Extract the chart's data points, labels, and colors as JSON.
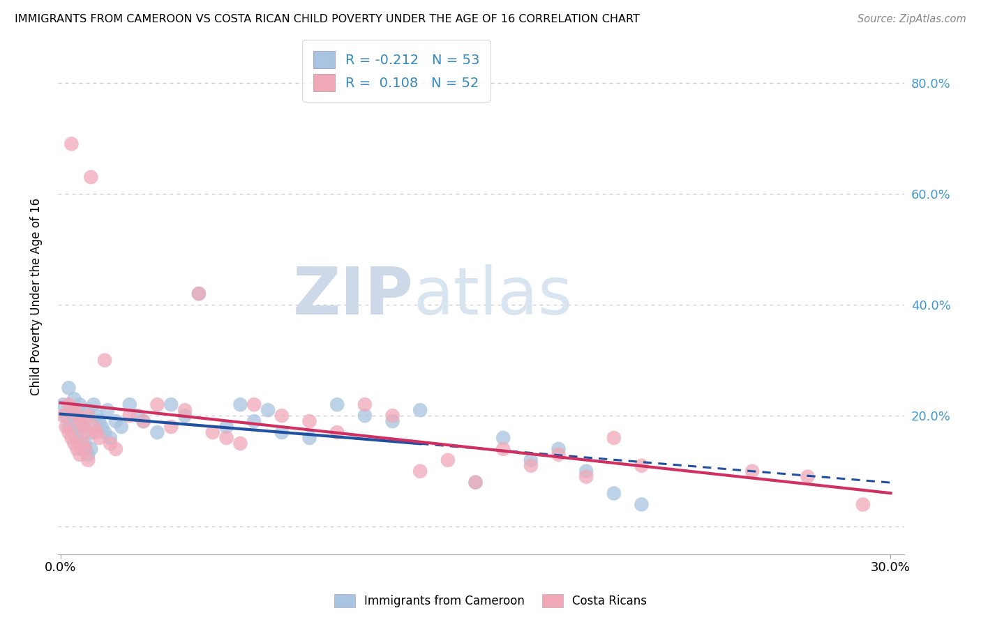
{
  "title": "IMMIGRANTS FROM CAMEROON VS COSTA RICAN CHILD POVERTY UNDER THE AGE OF 16 CORRELATION CHART",
  "source": "Source: ZipAtlas.com",
  "ylabel": "Child Poverty Under the Age of 16",
  "xlim": [
    -0.001,
    0.305
  ],
  "ylim": [
    -0.05,
    0.88
  ],
  "ytick_vals": [
    0.0,
    0.2,
    0.4,
    0.6,
    0.8
  ],
  "ytick_labels": [
    "",
    "20.0%",
    "40.0%",
    "60.0%",
    "80.0%"
  ],
  "xtick_vals": [
    0.0,
    0.05,
    0.1,
    0.15,
    0.2,
    0.25,
    0.3
  ],
  "xtick_major": [
    0.0,
    0.3
  ],
  "xtick_major_labels": [
    "0.0%",
    "30.0%"
  ],
  "legend1_label": "Immigrants from Cameroon",
  "legend2_label": "Costa Ricans",
  "R1": -0.212,
  "N1": 53,
  "R2": 0.108,
  "N2": 52,
  "color_blue": "#a8c4e0",
  "color_pink": "#f0a8b8",
  "line_blue": "#2050a0",
  "line_pink": "#d03060",
  "watermark_zip": "ZIP",
  "watermark_atlas": "atlas",
  "grid_color": "#c8c8d8",
  "blue_x": [
    0.001,
    0.002,
    0.003,
    0.003,
    0.004,
    0.004,
    0.005,
    0.005,
    0.006,
    0.006,
    0.007,
    0.007,
    0.008,
    0.008,
    0.009,
    0.009,
    0.01,
    0.01,
    0.011,
    0.011,
    0.012,
    0.013,
    0.014,
    0.015,
    0.016,
    0.017,
    0.018,
    0.02,
    0.022,
    0.025,
    0.028,
    0.03,
    0.035,
    0.04,
    0.045,
    0.05,
    0.06,
    0.065,
    0.07,
    0.075,
    0.08,
    0.09,
    0.1,
    0.11,
    0.12,
    0.13,
    0.15,
    0.16,
    0.17,
    0.18,
    0.19,
    0.2,
    0.21
  ],
  "blue_y": [
    0.22,
    0.2,
    0.18,
    0.25,
    0.19,
    0.21,
    0.17,
    0.23,
    0.16,
    0.2,
    0.15,
    0.22,
    0.14,
    0.18,
    0.15,
    0.19,
    0.13,
    0.21,
    0.14,
    0.17,
    0.22,
    0.2,
    0.19,
    0.18,
    0.17,
    0.21,
    0.16,
    0.19,
    0.18,
    0.22,
    0.2,
    0.19,
    0.17,
    0.22,
    0.2,
    0.42,
    0.18,
    0.22,
    0.19,
    0.21,
    0.17,
    0.16,
    0.22,
    0.2,
    0.19,
    0.21,
    0.08,
    0.16,
    0.12,
    0.14,
    0.1,
    0.06,
    0.04
  ],
  "pink_x": [
    0.001,
    0.002,
    0.003,
    0.003,
    0.004,
    0.004,
    0.005,
    0.005,
    0.006,
    0.006,
    0.007,
    0.007,
    0.008,
    0.008,
    0.009,
    0.009,
    0.01,
    0.01,
    0.011,
    0.012,
    0.013,
    0.014,
    0.016,
    0.018,
    0.02,
    0.025,
    0.03,
    0.035,
    0.04,
    0.045,
    0.05,
    0.055,
    0.06,
    0.065,
    0.07,
    0.08,
    0.09,
    0.1,
    0.11,
    0.12,
    0.13,
    0.14,
    0.15,
    0.16,
    0.17,
    0.18,
    0.19,
    0.2,
    0.21,
    0.25,
    0.27,
    0.29
  ],
  "pink_y": [
    0.2,
    0.18,
    0.17,
    0.22,
    0.16,
    0.69,
    0.15,
    0.21,
    0.14,
    0.2,
    0.13,
    0.19,
    0.15,
    0.18,
    0.14,
    0.17,
    0.12,
    0.2,
    0.63,
    0.18,
    0.17,
    0.16,
    0.3,
    0.15,
    0.14,
    0.2,
    0.19,
    0.22,
    0.18,
    0.21,
    0.42,
    0.17,
    0.16,
    0.15,
    0.22,
    0.2,
    0.19,
    0.17,
    0.22,
    0.2,
    0.1,
    0.12,
    0.08,
    0.14,
    0.11,
    0.13,
    0.09,
    0.16,
    0.11,
    0.1,
    0.09,
    0.04
  ],
  "blue_line_solid_end": 0.13,
  "blue_line_dash_start": 0.13
}
